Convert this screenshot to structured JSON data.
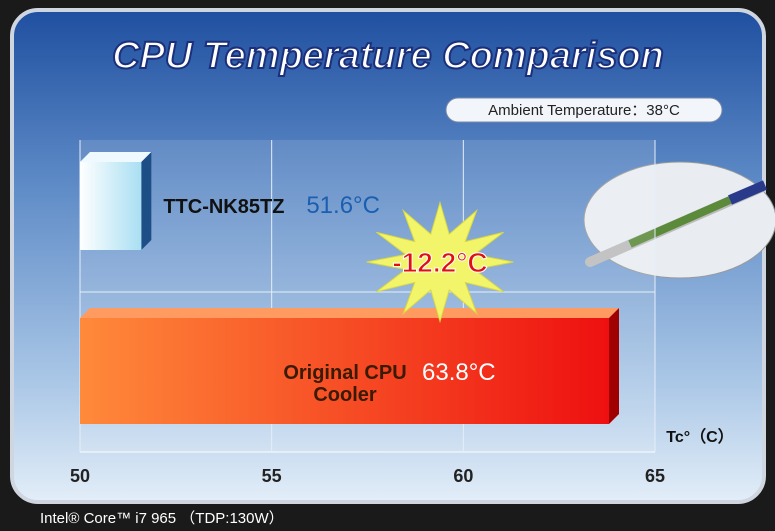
{
  "chart_data": {
    "type": "hbar",
    "title": "CPU Temperature Comparison",
    "subtitle": "Ambient Temperature：38°C",
    "categories": [
      "TTC-NK85TZ",
      "Original CPU Cooler"
    ],
    "values": [
      51.6,
      63.8
    ],
    "value_labels": [
      "51.6°C",
      "63.8°C"
    ],
    "colors": [
      "#c8eef8",
      "#ff3a10"
    ],
    "annotation": "-12.2°C",
    "x_label": "Tc°（C）",
    "footnote": "Intel® Core™ i7 965 （TDP:130W）",
    "xlim": [
      50,
      65
    ],
    "xticks": [
      50,
      55,
      60,
      65
    ],
    "grid": true
  }
}
